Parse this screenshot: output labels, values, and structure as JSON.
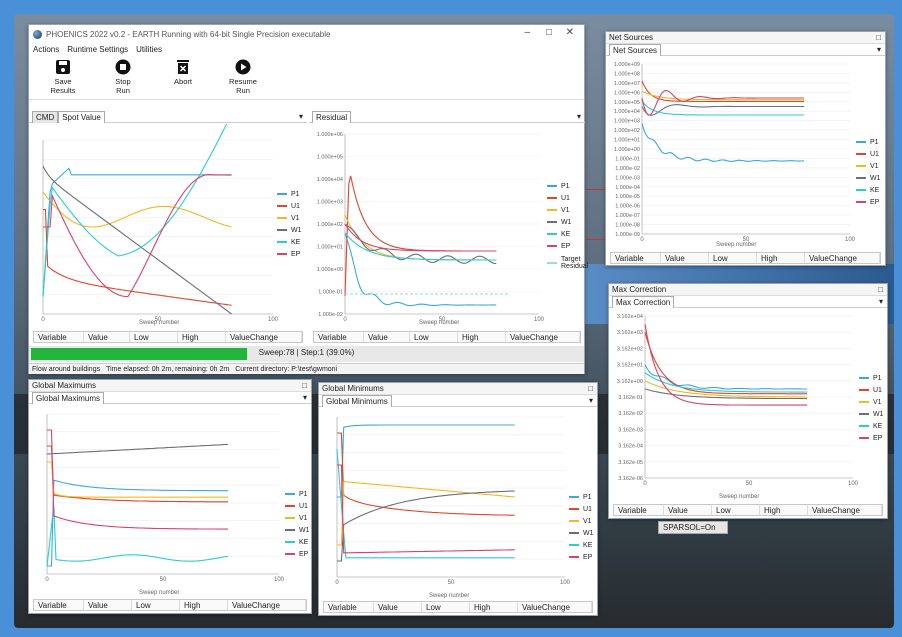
{
  "main": {
    "title": "PHOENICS 2022 v0.2 - EARTH   Running with 64-bit Single Precision executable",
    "menu": [
      "Actions",
      "Runtime Settings",
      "Utilities"
    ],
    "tools": [
      {
        "label": "Save\nResults",
        "icon": "save-icon"
      },
      {
        "label": "Stop\nRun",
        "icon": "stop-icon"
      },
      {
        "label": "Abort",
        "icon": "abort-icon"
      },
      {
        "label": "Resume\nRun",
        "icon": "resume-icon"
      }
    ],
    "tab_cmd": "CMD",
    "tab_spot": "Spot Value",
    "tab_residual": "Residual",
    "sweep_status": "Sweep:78 | Step:1  (39.0%)",
    "progress_pct": 39,
    "info_case": "Flow around buildings",
    "info_time": "Time elapsed: 0h 2m, remaining: 0h 2m",
    "info_dir": "Current directory:  P:\\test\\gwmoni"
  },
  "columns": [
    "Variable",
    "Value",
    "Low",
    "High",
    "ValueChange"
  ],
  "xlabel": "Sweep number",
  "series": [
    {
      "name": "P1",
      "color": "#3da8e0"
    },
    {
      "name": "U1",
      "color": "#e0472a"
    },
    {
      "name": "V1",
      "color": "#f2b81f"
    },
    {
      "name": "W1",
      "color": "#6b6f7a"
    },
    {
      "name": "KE",
      "color": "#2ccbd6"
    },
    {
      "name": "EP",
      "color": "#d8436e"
    }
  ],
  "residual_extra": "Target\nResidual",
  "residual_yticks": [
    "1.000e+06",
    "1.000e+05",
    "1.000e+04",
    "1.000e+03",
    "1.000e+02",
    "1.000e+01",
    "1.000e+00",
    "1.000e-01",
    "1.000e-02"
  ],
  "net_sources": {
    "title": "Net Sources",
    "tab": "Net Sources",
    "yticks": [
      "1.000e+09",
      "1.000e+08",
      "1.000e+07",
      "1.000e+06",
      "1.000e+05",
      "1.000e+04",
      "1.000e+03",
      "1.000e+02",
      "1.000e+01",
      "1.000e+00",
      "1.000e-01",
      "1.000e-02",
      "1.000e-03",
      "1.000e-04",
      "1.000e-05",
      "1.000e-06",
      "1.000e-07",
      "1.000e-08",
      "1.000e-09"
    ]
  },
  "max_correction": {
    "title": "Max Correction",
    "tab": "Max Correction",
    "yticks": [
      "3.162e+04",
      "3.162e+03",
      "3.162e+02",
      "3.162e+01",
      "3.162e+00",
      "3.162e-01",
      "3.162e-02",
      "3.162e-03",
      "3.162e-04",
      "3.162e-05",
      "3.162e-06"
    ]
  },
  "global_max": {
    "title": "Global Maximums",
    "tab": "Global Maximums"
  },
  "global_min": {
    "title": "Global Minimums",
    "tab": "Global Minimums"
  },
  "sparsol": "SPARSOL=On",
  "xticks": [
    "0",
    "50",
    "100"
  ],
  "win_btn": "□",
  "dd": "▾"
}
